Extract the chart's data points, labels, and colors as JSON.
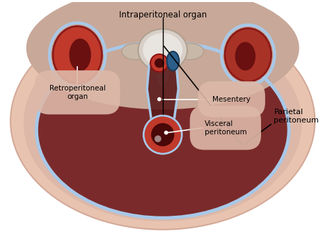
{
  "bg_color": "#ffffff",
  "outer_body_color": "#e8c4b0",
  "outer_body_edge": "#d4a898",
  "mid_layer_color": "#ddb8a8",
  "peritoneum_color": "#7a2a2a",
  "parietal_line_color": "#a8c8e8",
  "kidney_left_color": "#c0392b",
  "kidney_right_color": "#a93226",
  "spine_color": "#d5c5b8",
  "spine_white": "#e8e8e8",
  "aorta_color": "#c0392b",
  "vein_color": "#2c5f8a",
  "mesentery_color": "#7a2a2a",
  "label_bg": "#ddb8a8",
  "figsize": [
    4.74,
    3.42
  ],
  "dpi": 100,
  "labels": {
    "intraperitoneal": "Intraperitoneal organ",
    "visceral": "Visceral\nperitoneum",
    "mesentery": "Mesentery",
    "retroperitoneal": "Retroperitoneal\norgan",
    "parietal": "Parietal\nperitoneum"
  }
}
